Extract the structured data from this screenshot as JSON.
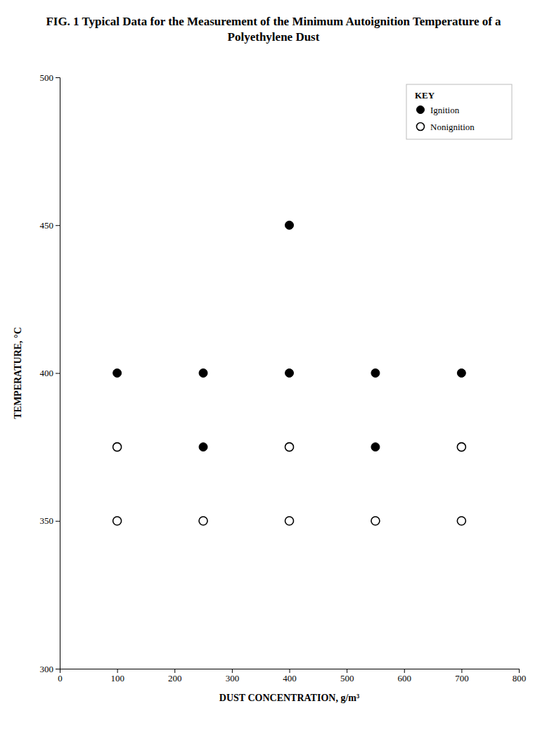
{
  "chart_data": {
    "type": "scatter",
    "title": "FIG. 1  Typical Data for the Measurement of the Minimum Autoignition Temperature of a Polyethylene Dust",
    "x_label": "DUST CONCENTRATION, g/m³",
    "y_label": "TEMPERATURE, °C",
    "xlim": [
      0,
      800
    ],
    "ylim": [
      300,
      500
    ],
    "xticks": [
      0,
      100,
      200,
      300,
      400,
      500,
      600,
      700,
      800
    ],
    "yticks": [
      300,
      350,
      400,
      450,
      500
    ],
    "grid": false,
    "legend": "upper right",
    "legend_title": "KEY",
    "series": [
      {
        "name": "Ignition",
        "color": "#000000",
        "marker": "circle",
        "x": [
          100,
          250,
          250,
          400,
          400,
          550,
          550,
          700
        ],
        "values": [
          400,
          400,
          375,
          450,
          400,
          400,
          375,
          400
        ]
      },
      {
        "name": "Nonignition",
        "color": "#000000",
        "marker": "open-circle",
        "x": [
          100,
          100,
          250,
          400,
          400,
          550,
          700,
          700
        ],
        "values": [
          375,
          350,
          350,
          375,
          350,
          350,
          375,
          350
        ]
      }
    ]
  }
}
